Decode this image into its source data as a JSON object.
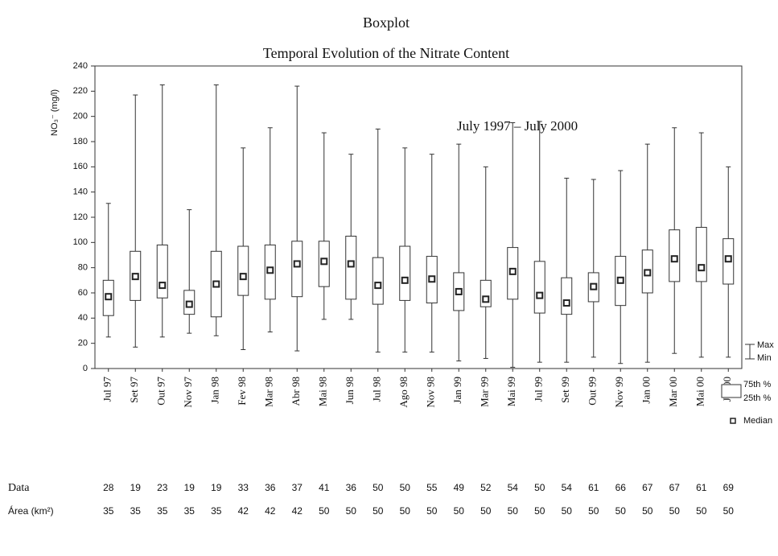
{
  "chart_data": {
    "type": "boxplot",
    "title": "Boxplot",
    "subtitle": "Temporal Evolution of the Nitrate Content",
    "annotation": "July 1997 – July 2000",
    "y_label": "NO₃⁻ (mg/l)",
    "categories": [
      "Jul 97",
      "Set 97",
      "Out 97",
      "Nov 97",
      "Jan 98",
      "Fev 98",
      "Mar 98",
      "Abr 98",
      "Mai 98",
      "Jun 98",
      "Jul 98",
      "Ago 98",
      "Nov 98",
      "Jan 99",
      "Mar 99",
      "Mai 99",
      "Jul 99",
      "Set 99",
      "Out 99",
      "Nov 99",
      "Jan 00",
      "Mar 00",
      "Mai 00",
      "Jul 00"
    ],
    "boxes": [
      {
        "min": 25,
        "q1": 42,
        "median": 57,
        "q3": 70,
        "max": 131
      },
      {
        "min": 17,
        "q1": 54,
        "median": 73,
        "q3": 93,
        "max": 217
      },
      {
        "min": 25,
        "q1": 56,
        "median": 66,
        "q3": 98,
        "max": 225
      },
      {
        "min": 28,
        "q1": 43,
        "median": 51,
        "q3": 62,
        "max": 126
      },
      {
        "min": 26,
        "q1": 41,
        "median": 67,
        "q3": 93,
        "max": 225
      },
      {
        "min": 15,
        "q1": 58,
        "median": 73,
        "q3": 97,
        "max": 175
      },
      {
        "min": 29,
        "q1": 55,
        "median": 78,
        "q3": 98,
        "max": 191
      },
      {
        "min": 14,
        "q1": 57,
        "median": 83,
        "q3": 101,
        "max": 224
      },
      {
        "min": 39,
        "q1": 65,
        "median": 85,
        "q3": 101,
        "max": 187
      },
      {
        "min": 39,
        "q1": 55,
        "median": 83,
        "q3": 105,
        "max": 170
      },
      {
        "min": 13,
        "q1": 51,
        "median": 66,
        "q3": 88,
        "max": 190
      },
      {
        "min": 13,
        "q1": 54,
        "median": 70,
        "q3": 97,
        "max": 175
      },
      {
        "min": 13,
        "q1": 52,
        "median": 71,
        "q3": 89,
        "max": 170
      },
      {
        "min": 6,
        "q1": 46,
        "median": 61,
        "q3": 76,
        "max": 178
      },
      {
        "min": 8,
        "q1": 49,
        "median": 55,
        "q3": 70,
        "max": 160
      },
      {
        "min": 1,
        "q1": 55,
        "median": 77,
        "q3": 96,
        "max": 195
      },
      {
        "min": 5,
        "q1": 44,
        "median": 58,
        "q3": 85,
        "max": 196
      },
      {
        "min": 5,
        "q1": 43,
        "median": 52,
        "q3": 72,
        "max": 151
      },
      {
        "min": 9,
        "q1": 53,
        "median": 65,
        "q3": 76,
        "max": 150
      },
      {
        "min": 4,
        "q1": 50,
        "median": 70,
        "q3": 89,
        "max": 157
      },
      {
        "min": 5,
        "q1": 60,
        "median": 76,
        "q3": 94,
        "max": 178
      },
      {
        "min": 12,
        "q1": 69,
        "median": 87,
        "q3": 110,
        "max": 191
      },
      {
        "min": 9,
        "q1": 69,
        "median": 80,
        "q3": 112,
        "max": 187
      },
      {
        "min": 9,
        "q1": 67,
        "median": 87,
        "q3": 103,
        "max": 160
      }
    ],
    "ylim": [
      0,
      240
    ],
    "yticks": [
      0,
      20,
      40,
      60,
      80,
      100,
      120,
      140,
      160,
      180,
      200,
      220,
      240
    ],
    "legend": {
      "max": "Max",
      "min": "Min",
      "q3": "75th %",
      "q1": "25th %",
      "median": "Median"
    }
  },
  "table": {
    "rows": [
      {
        "label": "Data",
        "values": [
          28,
          19,
          23,
          19,
          19,
          33,
          36,
          37,
          41,
          36,
          50,
          50,
          55,
          49,
          52,
          54,
          50,
          54,
          61,
          66,
          67,
          67,
          61,
          69
        ]
      },
      {
        "label": "Área (km²)",
        "values": [
          35,
          35,
          35,
          35,
          35,
          42,
          42,
          42,
          50,
          50,
          50,
          50,
          50,
          50,
          50,
          50,
          50,
          50,
          50,
          50,
          50,
          50,
          50,
          50
        ]
      }
    ]
  }
}
